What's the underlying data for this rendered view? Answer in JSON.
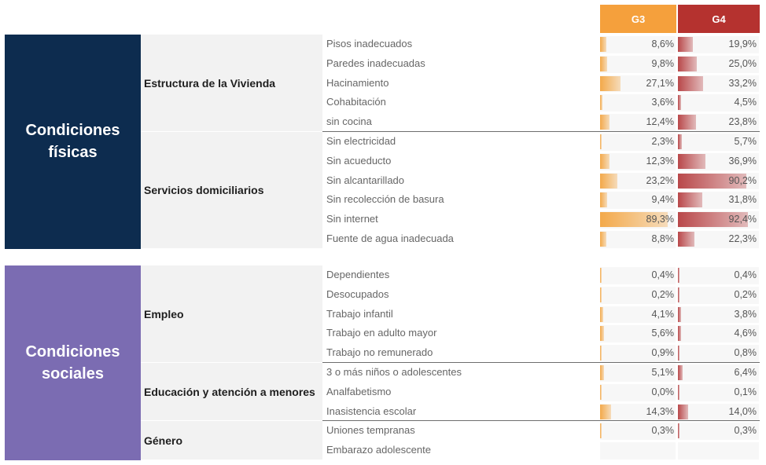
{
  "columns": [
    "G3",
    "G4"
  ],
  "colors": {
    "g3_header": "#f5a03c",
    "g4_header": "#b5322f",
    "physical_block": "#0d2c4f",
    "social_block": "#7b6cb2",
    "g3_bar": "#f3a94a",
    "g4_bar": "#b9484a"
  },
  "chart_data": {
    "type": "table",
    "series": [
      "G3",
      "G4"
    ],
    "sections": [
      {
        "title": "Condiciones físicas",
        "lines": [
          "Condiciones",
          "físicas"
        ],
        "groups": [
          {
            "name": "Estructura de la Vivienda",
            "rows": [
              {
                "label": "Pisos inadecuados",
                "g3": 8.6,
                "g4": 19.9,
                "g3_text": "8,6%",
                "g4_text": "19,9%"
              },
              {
                "label": "Paredes inadecuadas",
                "g3": 9.8,
                "g4": 25.0,
                "g3_text": "9,8%",
                "g4_text": "25,0%"
              },
              {
                "label": "Hacinamiento",
                "g3": 27.1,
                "g4": 33.2,
                "g3_text": "27,1%",
                "g4_text": "33,2%"
              },
              {
                "label": "Cohabitación",
                "g3": 3.6,
                "g4": 4.5,
                "g3_text": "3,6%",
                "g4_text": "4,5%"
              },
              {
                "label": "sin cocina",
                "g3": 12.4,
                "g4": 23.8,
                "g3_text": "12,4%",
                "g4_text": "23,8%"
              }
            ]
          },
          {
            "name": "Servicios domiciliarios",
            "rows": [
              {
                "label": "Sin electricidad",
                "g3": 2.3,
                "g4": 5.7,
                "g3_text": "2,3%",
                "g4_text": "5,7%"
              },
              {
                "label": "Sin acueducto",
                "g3": 12.3,
                "g4": 36.9,
                "g3_text": "12,3%",
                "g4_text": "36,9%"
              },
              {
                "label": "Sin alcantarillado",
                "g3": 23.2,
                "g4": 90.2,
                "g3_text": "23,2%",
                "g4_text": "90,2%"
              },
              {
                "label": "Sin recolección de basura",
                "g3": 9.4,
                "g4": 31.8,
                "g3_text": "9,4%",
                "g4_text": "31,8%"
              },
              {
                "label": "Sin internet",
                "g3": 89.3,
                "g4": 92.4,
                "g3_text": "89,3%",
                "g4_text": "92,4%"
              },
              {
                "label": "Fuente de agua inadecuada",
                "g3": 8.8,
                "g4": 22.3,
                "g3_text": "8,8%",
                "g4_text": "22,3%"
              }
            ]
          }
        ]
      },
      {
        "title": "Condiciones sociales",
        "lines": [
          "Condiciones",
          "sociales"
        ],
        "groups": [
          {
            "name": "Empleo",
            "rows": [
              {
                "label": "Dependientes",
                "g3": 0.4,
                "g4": 0.4,
                "g3_text": "0,4%",
                "g4_text": "0,4%"
              },
              {
                "label": "Desocupados",
                "g3": 0.2,
                "g4": 0.2,
                "g3_text": "0,2%",
                "g4_text": "0,2%"
              },
              {
                "label": "Trabajo infantil",
                "g3": 4.1,
                "g4": 3.8,
                "g3_text": "4,1%",
                "g4_text": "3,8%"
              },
              {
                "label": "Trabajo en adulto mayor",
                "g3": 5.6,
                "g4": 4.6,
                "g3_text": "5,6%",
                "g4_text": "4,6%"
              },
              {
                "label": "Trabajo no remunerado",
                "g3": 0.9,
                "g4": 0.8,
                "g3_text": "0,9%",
                "g4_text": "0,8%"
              }
            ]
          },
          {
            "name": "Educación y atención a menores",
            "rows": [
              {
                "label": "3 o más niños o adolescentes",
                "g3": 5.1,
                "g4": 6.4,
                "g3_text": "5,1%",
                "g4_text": "6,4%"
              },
              {
                "label": "Analfabetismo",
                "g3": 0.0,
                "g4": 0.1,
                "g3_text": "0,0%",
                "g4_text": "0,1%"
              },
              {
                "label": "Inasistencia escolar",
                "g3": 14.3,
                "g4": 14.0,
                "g3_text": "14,3%",
                "g4_text": "14,0%"
              }
            ]
          },
          {
            "name": "Género",
            "rows": [
              {
                "label": "Uniones tempranas",
                "g3": 0.3,
                "g4": 0.3,
                "g3_text": "0,3%",
                "g4_text": "0,3%"
              },
              {
                "label": "Embarazo adolescente",
                "g3": null,
                "g4": null,
                "g3_text": "",
                "g4_text": ""
              }
            ]
          }
        ]
      }
    ]
  }
}
